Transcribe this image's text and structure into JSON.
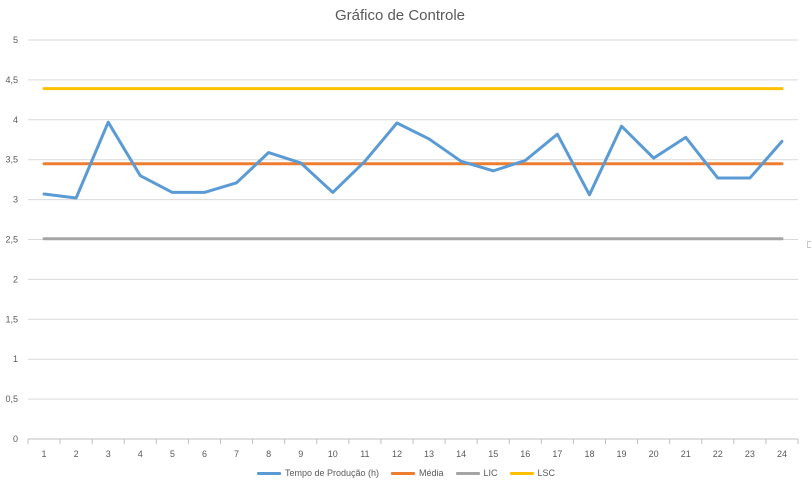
{
  "chart_data": {
    "type": "line",
    "title": "Gráfico de Controle",
    "xlabel": "",
    "ylabel": "",
    "categories": [
      "1",
      "2",
      "3",
      "4",
      "5",
      "6",
      "7",
      "8",
      "9",
      "10",
      "11",
      "12",
      "13",
      "14",
      "15",
      "16",
      "17",
      "18",
      "19",
      "20",
      "21",
      "22",
      "23",
      "24"
    ],
    "ylim": [
      0,
      5
    ],
    "yticks": [
      "0",
      "0,5",
      "1",
      "1,5",
      "2",
      "2,5",
      "3",
      "3,5",
      "4",
      "4,5",
      "5"
    ],
    "grid": true,
    "legend_position": "bottom",
    "series": [
      {
        "name": "Tempo de Produção (h)",
        "color": "#5b9bd5",
        "values": [
          3.07,
          3.02,
          3.97,
          3.3,
          3.09,
          3.09,
          3.21,
          3.59,
          3.46,
          3.09,
          3.48,
          3.96,
          3.76,
          3.48,
          3.36,
          3.49,
          3.82,
          3.06,
          3.92,
          3.52,
          3.78,
          3.27,
          3.27,
          3.73
        ]
      },
      {
        "name": "Média",
        "color": "#ed7d31",
        "values": [
          3.45,
          3.45,
          3.45,
          3.45,
          3.45,
          3.45,
          3.45,
          3.45,
          3.45,
          3.45,
          3.45,
          3.45,
          3.45,
          3.45,
          3.45,
          3.45,
          3.45,
          3.45,
          3.45,
          3.45,
          3.45,
          3.45,
          3.45,
          3.45
        ]
      },
      {
        "name": "LIC",
        "color": "#a5a5a5",
        "values": [
          2.51,
          2.51,
          2.51,
          2.51,
          2.51,
          2.51,
          2.51,
          2.51,
          2.51,
          2.51,
          2.51,
          2.51,
          2.51,
          2.51,
          2.51,
          2.51,
          2.51,
          2.51,
          2.51,
          2.51,
          2.51,
          2.51,
          2.51,
          2.51
        ]
      },
      {
        "name": "LSC",
        "color": "#ffc000",
        "values": [
          4.39,
          4.39,
          4.39,
          4.39,
          4.39,
          4.39,
          4.39,
          4.39,
          4.39,
          4.39,
          4.39,
          4.39,
          4.39,
          4.39,
          4.39,
          4.39,
          4.39,
          4.39,
          4.39,
          4.39,
          4.39,
          4.39,
          4.39,
          4.39
        ]
      }
    ]
  }
}
